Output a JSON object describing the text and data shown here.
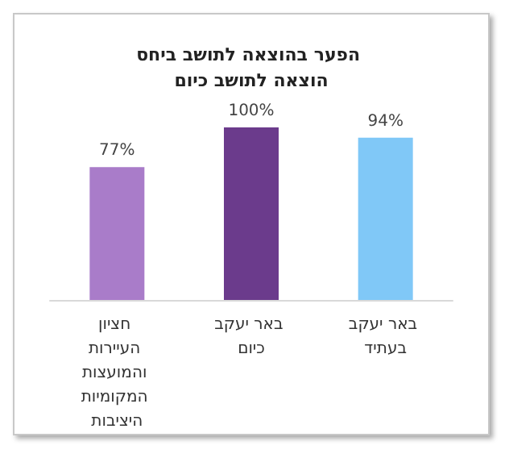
{
  "chart_data": {
    "type": "bar",
    "title": "הפער בהוצאה לתושב ביחס הוצאה לתושב כיום",
    "categories": [
      "חציון העיירות והמועצות המקומיות היציבות",
      "באר יעקב כיום",
      "באר יעקב בעתיד"
    ],
    "values": [
      77,
      100,
      94
    ],
    "value_labels": [
      "77%",
      "100%",
      "94%"
    ],
    "colors": [
      "#a97cc9",
      "#6b3b8c",
      "#80c8f7"
    ],
    "grid": false
  }
}
